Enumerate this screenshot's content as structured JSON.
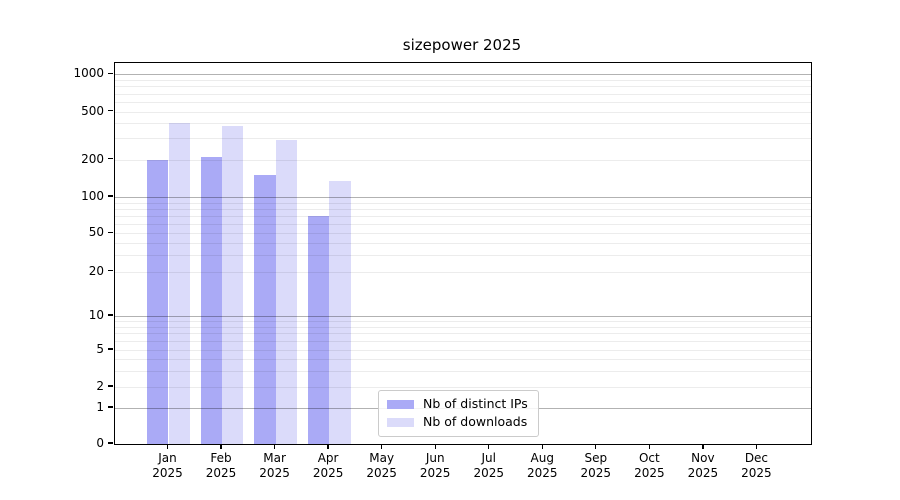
{
  "chart_data": {
    "type": "bar",
    "title": "sizepower 2025",
    "x_labels": [
      {
        "month": "Jan",
        "year": "2025"
      },
      {
        "month": "Feb",
        "year": "2025"
      },
      {
        "month": "Mar",
        "year": "2025"
      },
      {
        "month": "Apr",
        "year": "2025"
      },
      {
        "month": "May",
        "year": "2025"
      },
      {
        "month": "Jun",
        "year": "2025"
      },
      {
        "month": "Jul",
        "year": "2025"
      },
      {
        "month": "Aug",
        "year": "2025"
      },
      {
        "month": "Sep",
        "year": "2025"
      },
      {
        "month": "Oct",
        "year": "2025"
      },
      {
        "month": "Nov",
        "year": "2025"
      },
      {
        "month": "Dec",
        "year": "2025"
      }
    ],
    "y_axis": {
      "scale": "symlog",
      "tick_labels": [
        "1000",
        "500",
        "200",
        "100",
        "50",
        "20",
        "10",
        "5",
        "2",
        "1",
        "0"
      ],
      "tick_values": [
        1000,
        500,
        200,
        100,
        50,
        20,
        10,
        5,
        2,
        1,
        0
      ],
      "grid": "horizontal major and minor log gridlines"
    },
    "series": [
      {
        "name": "Nb of distinct IPs",
        "color": "#aaaaf6",
        "values": [
          200,
          210,
          150,
          70,
          null,
          null,
          null,
          null,
          null,
          null,
          null,
          null
        ]
      },
      {
        "name": "Nb of downloads",
        "color": "#dbdbfa",
        "values": [
          400,
          380,
          290,
          135,
          null,
          null,
          null,
          null,
          null,
          null,
          null,
          null
        ]
      }
    ],
    "legend_position": "inside axes, lower center"
  }
}
